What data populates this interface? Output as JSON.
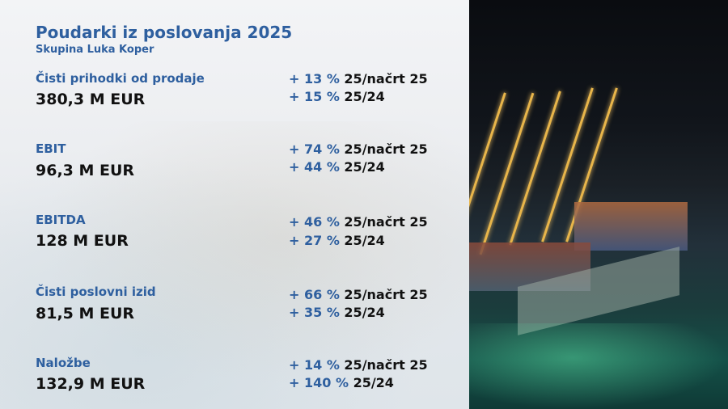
{
  "title": "Poudarki iz poslovanja 2025",
  "subtitle": "Skupina Luka Koper",
  "metrics": [
    {
      "label": "Čisti prihodki od prodaje",
      "value": "380,3 M EUR",
      "changes": [
        {
          "pct": "+ 13 %",
          "basis": "25/načrt 25"
        },
        {
          "pct": "+ 15 %",
          "basis": "25/24"
        }
      ]
    },
    {
      "label": "EBIT",
      "value": "96,3 M EUR",
      "changes": [
        {
          "pct": "+ 74 %",
          "basis": "25/načrt 25"
        },
        {
          "pct": "+ 44 %",
          "basis": "25/24"
        }
      ]
    },
    {
      "label": "EBITDA",
      "value": "128 M EUR",
      "changes": [
        {
          "pct": "+ 46 %",
          "basis": "25/načrt 25"
        },
        {
          "pct": "+ 27 %",
          "basis": "25/24"
        }
      ]
    },
    {
      "label": "Čisti poslovni izid",
      "value": "81,5 M EUR",
      "changes": [
        {
          "pct": "+ 66 %",
          "basis": "25/načrt 25"
        },
        {
          "pct": "+ 35 %",
          "basis": "25/24"
        }
      ]
    },
    {
      "label": "Naložbe",
      "value": "132,9 M EUR",
      "changes": [
        {
          "pct": "+ 14 %",
          "basis": "25/načrt 25"
        },
        {
          "pct": "+ 140 %",
          "basis": "25/24"
        }
      ]
    }
  ],
  "colors": {
    "accent": "#2e5f9f",
    "text": "#111111"
  },
  "image": "night-port-container-cranes-photo"
}
